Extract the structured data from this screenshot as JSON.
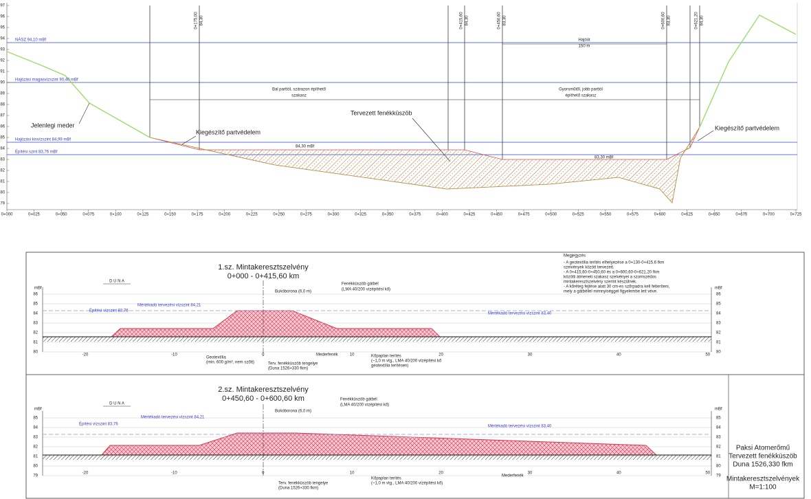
{
  "profile": {
    "y_ticks": [
      "97",
      "96",
      "95",
      "94",
      "93",
      "92",
      "91",
      "90",
      "89",
      "88",
      "87",
      "86",
      "85",
      "84",
      "83",
      "82",
      "81",
      "80",
      "79"
    ],
    "x_ticks": [
      "0+000",
      "0+025",
      "0+050",
      "0+075",
      "0+100",
      "0+125",
      "0+150",
      "0+175",
      "0+200",
      "0+225",
      "0+250",
      "0+275",
      "0+300",
      "0+325",
      "0+350",
      "0+375",
      "0+400",
      "0+425",
      "0+450",
      "0+475",
      "0+500",
      "0+525",
      "0+550",
      "0+575",
      "0+600",
      "0+625",
      "0+650",
      "0+675",
      "0+700",
      "0+725"
    ],
    "water_levels": [
      "NÁSZ 94,10 mBf",
      "Hajózási magasvízszint 90,40 mBf",
      "Hajózási kisvízszint 84,99 mBf",
      "Építési szint 83,76 mBf"
    ],
    "stations": [
      {
        "km": "0+175,00",
        "level": "84,30"
      },
      {
        "km": "0+415,60",
        "level": "84,30"
      },
      {
        "km": "0+450,60",
        "level": "83,30"
      },
      {
        "km": "0+600,60",
        "level": "83,30"
      },
      {
        "km": "0+621,20",
        "level": "84,30"
      }
    ],
    "zones": [
      [
        "Bal parttól, szárazon építhető",
        "szakasz"
      ],
      [
        "Gyorsműtől, jobb parttól",
        "építhető szakasz"
      ],
      [
        "Hajóút",
        "150 m"
      ]
    ],
    "annotations": [
      "Jelenlegi meder",
      "Kiegészítő partvédelem",
      "Tervezett fenékküszöb",
      "Kiegészítő partvédelem",
      "84,30 mBf",
      "83,30 mBf"
    ]
  },
  "sections": [
    {
      "title": "1.sz. Mintakeresztszelvény",
      "range": "0+000 - 0+415,60 km",
      "direction": "D U N A",
      "unit": "mBf",
      "labels": [
        "Építési vízszint 83,76",
        "Mértékadó tervezési vízszint 84,21",
        "Mértékadó tervezési vízszint 83,40",
        "Bukóborona (6,0 m)",
        "Fenékküszöb gátbél",
        "(LMA 40/200 vízépítési kő)",
        "Geotextília",
        "(min. 600 g/m², nem szőtt)",
        "Terv. fenékküszöb tengelye",
        "(Duna 1526+330 fkm)",
        "Mederfenék",
        "Kőpaplan terítés",
        "(~1,0 m vtg., LMA 40/200 vízépítési kő",
        "geotextília terítésen)"
      ],
      "x_ticks": [
        "-20",
        "-10",
        "0",
        "10",
        "20",
        "30",
        "40",
        "50"
      ],
      "y_ticks": [
        "86",
        "85",
        "84",
        "83",
        "82",
        "81",
        "80"
      ]
    },
    {
      "title": "2.sz. Mintakeresztszelvény",
      "range": "0+450,60 - 0+600,60 km",
      "direction": "D U N A",
      "unit": "mBf",
      "labels": [
        "Építési vízszint 83,76",
        "Mértékadó tervezési vízszint 84,21",
        "Mértékadó tervezési vízszint 83,40",
        "Bukóborona (6,0 m)",
        "Fenékküszöb gátbél",
        "(LMA 40/200 vízépítési kő)",
        "Terv. fenékküszöb tengelye",
        "(Duna 1526+330 fkm)",
        "Kőpaplan terítés",
        "(~1,0 m vtg., LMA 40/200 vízépítési kő)",
        "Mederfenék"
      ],
      "x_ticks": [
        "-20",
        "-10",
        "0",
        "10",
        "20",
        "30",
        "40",
        "50"
      ],
      "y_ticks": [
        "85",
        "84",
        "83",
        "82",
        "81",
        "80",
        "79"
      ]
    }
  ],
  "notes": {
    "title": "Megjegyzés",
    "lines": [
      "- A geotextília terítés elhelyezése a 0+130-0+415,6 fkm",
      "szelvények között tervezett.",
      "- A 0+415,60-0+450,60 és a 0+600,60-0+621,20 fkm",
      "közötti átmeneti szakasz szelvényei a szomszédos",
      "mintakeresztszelvény szerint készülnek.",
      "- A kőréteg fejtése alatt 30 cm-es szőrpadra kell felteríteni,",
      "mely a gátbéllel mennyiséggel figyelembe lett véve."
    ]
  },
  "title_block": [
    "Paksi Atomerőmű",
    "Tervezett fenékküszöb",
    "Duna 1526,330 fkm",
    "Mintakeresztszelvények",
    "M=1:100"
  ]
}
